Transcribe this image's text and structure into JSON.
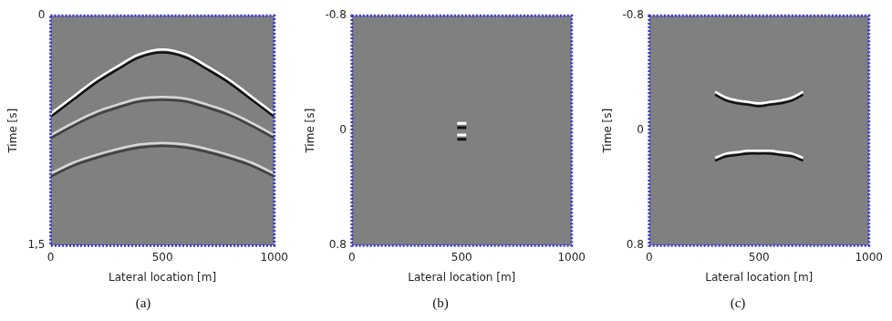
{
  "chart_data": [
    {
      "type": "line",
      "title": "(a)",
      "x_label": "Lateral location [m]",
      "y_label": "Time [s]",
      "xlim": [
        0,
        1000
      ],
      "xticks": [
        0,
        500,
        1000
      ],
      "ylim": [
        1.5,
        0
      ],
      "yticks": [
        0,
        {
          "value": 1.5,
          "label": "1,5"
        }
      ],
      "grid": false,
      "x": [
        0,
        100,
        200,
        300,
        400,
        500,
        600,
        700,
        800,
        900,
        1000
      ],
      "series": [
        {
          "color": "#ffffff",
          "values": [
            0.64,
            0.53,
            0.42,
            0.33,
            0.25,
            0.22,
            0.25,
            0.33,
            0.42,
            0.53,
            0.64
          ]
        },
        {
          "color": "#111111",
          "values": [
            0.66,
            0.55,
            0.44,
            0.35,
            0.27,
            0.24,
            0.27,
            0.35,
            0.44,
            0.55,
            0.66
          ]
        },
        {
          "color": "#d8d8d8",
          "values": [
            0.78,
            0.7,
            0.63,
            0.58,
            0.54,
            0.53,
            0.54,
            0.58,
            0.63,
            0.7,
            0.78
          ]
        },
        {
          "color": "#404040",
          "values": [
            0.8,
            0.72,
            0.65,
            0.6,
            0.56,
            0.55,
            0.56,
            0.6,
            0.65,
            0.72,
            0.8
          ]
        },
        {
          "color": "#d8d8d8",
          "values": [
            1.03,
            0.96,
            0.91,
            0.87,
            0.84,
            0.83,
            0.84,
            0.87,
            0.91,
            0.96,
            1.03
          ]
        },
        {
          "color": "#404040",
          "values": [
            1.05,
            0.98,
            0.93,
            0.89,
            0.86,
            0.85,
            0.86,
            0.89,
            0.93,
            0.98,
            1.05
          ]
        }
      ]
    },
    {
      "type": "line",
      "title": "(b)",
      "x_label": "Lateral location [m]",
      "y_label": "Time [s]",
      "xlim": [
        0,
        1000
      ],
      "xticks": [
        0,
        500,
        1000
      ],
      "ylim": [
        0.8,
        -0.8
      ],
      "yticks": [
        -0.8,
        0,
        0.8
      ],
      "grid": false,
      "x": [
        500,
        500
      ],
      "series": [
        {
          "type": "scatter",
          "marker": "line",
          "color": "#ffffff",
          "values": [
            -0.05,
            0.03
          ]
        },
        {
          "type": "scatter",
          "marker": "line",
          "color": "#111111",
          "values": [
            -0.02,
            0.06
          ]
        }
      ]
    },
    {
      "type": "line",
      "title": "(c)",
      "x_label": "Lateral location [m]",
      "y_label": "Time [s]",
      "xlim": [
        0,
        1000
      ],
      "xticks": [
        0,
        500,
        1000
      ],
      "ylim": [
        0.8,
        -0.8
      ],
      "yticks": [
        -0.8,
        0,
        0.8
      ],
      "grid": false,
      "x": [
        300,
        350,
        400,
        450,
        500,
        550,
        600,
        650,
        700
      ],
      "series": [
        {
          "color": "#ffffff",
          "values": [
            -0.27,
            -0.23,
            -0.21,
            -0.2,
            -0.19,
            -0.2,
            -0.21,
            -0.23,
            -0.27
          ]
        },
        {
          "color": "#111111",
          "values": [
            -0.25,
            -0.21,
            -0.19,
            -0.18,
            -0.17,
            -0.18,
            -0.19,
            -0.21,
            -0.25
          ]
        },
        {
          "color": "#ffffff",
          "values": [
            0.19,
            0.16,
            0.15,
            0.14,
            0.14,
            0.14,
            0.15,
            0.16,
            0.19
          ]
        },
        {
          "color": "#111111",
          "values": [
            0.21,
            0.18,
            0.17,
            0.16,
            0.16,
            0.16,
            0.17,
            0.18,
            0.21
          ]
        }
      ]
    }
  ]
}
